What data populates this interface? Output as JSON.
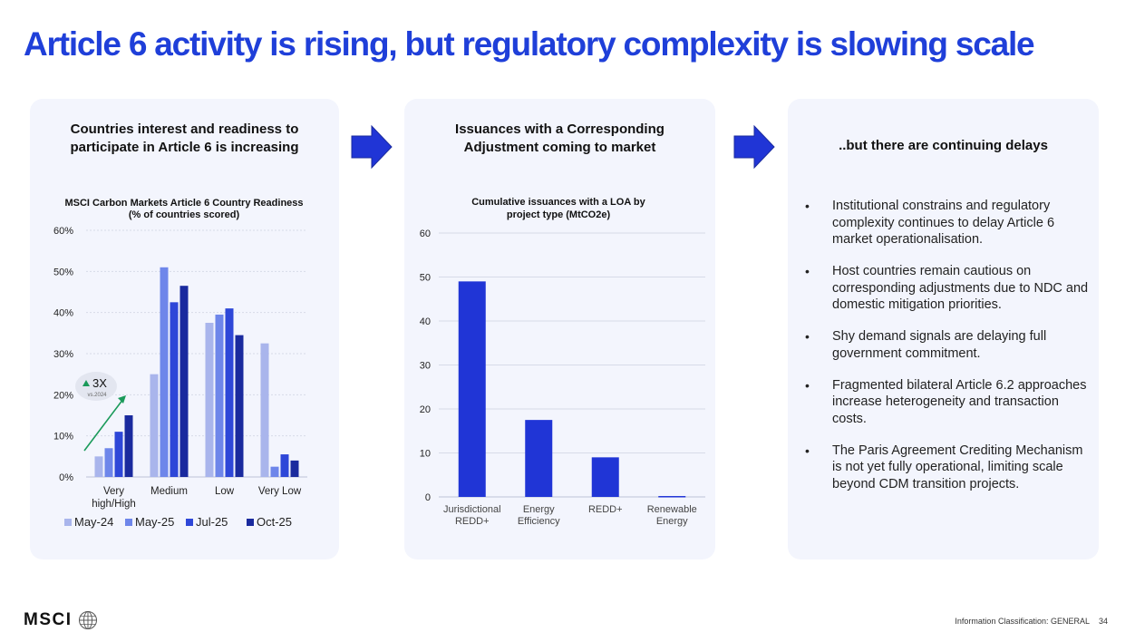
{
  "slide": {
    "title": "Article 6 activity is rising, but regulatory complexity is slowing scale"
  },
  "panel1": {
    "heading_line1": "Countries interest and readiness to",
    "heading_line2": "participate in Article 6 is increasing"
  },
  "panel2": {
    "heading_line1": "Issuances with a Corresponding",
    "heading_line2": "Adjustment coming to market"
  },
  "panel3": {
    "heading": "..but there are continuing delays",
    "bullets": [
      "Institutional constrains and regulatory complexity continues to delay Article 6 market operationalisation.",
      "Host countries remain cautious on corresponding adjustments due to NDC and domestic mitigation priorities.",
      "Shy demand signals are delaying full government commitment.",
      "Fragmented bilateral Article 6.2 approaches increase heterogeneity and transaction costs.",
      "The Paris Agreement Crediting Mechanism is not yet fully operational, limiting scale beyond CDM transition projects."
    ]
  },
  "chart_data": [
    {
      "type": "bar",
      "title_line1": "MSCI Carbon Markets Article 6 Country Readiness",
      "title_line2": "(% of countries scored)",
      "categories": [
        [
          "Very",
          "high/High"
        ],
        [
          "Medium"
        ],
        [
          "Low"
        ],
        [
          "Very Low"
        ]
      ],
      "series": [
        {
          "name": "May-24",
          "color": "#a9b5ec",
          "values": [
            5,
            25,
            37.5,
            32.5
          ]
        },
        {
          "name": "May-25",
          "color": "#6e86ea",
          "values": [
            7,
            51,
            39.5,
            2.5
          ]
        },
        {
          "name": "Jul-25",
          "color": "#2e47d8",
          "values": [
            11,
            42.5,
            41,
            5.5
          ]
        },
        {
          "name": "Oct-25",
          "color": "#1a2a9e",
          "values": [
            15,
            46.5,
            34.5,
            4
          ]
        }
      ],
      "yticks": [
        "0%",
        "10%",
        "20%",
        "30%",
        "40%",
        "50%",
        "60%"
      ],
      "ylim": [
        0,
        60
      ],
      "grid": true,
      "legend": "bottom",
      "annotation": {
        "label": "3X",
        "sublabel": "vs.2024",
        "icon": "triangle-up-icon",
        "color": "#1a9a5a"
      }
    },
    {
      "type": "bar",
      "title_line1": "Cumulative issuances with a LOA by",
      "title_line2": "project type (MtCO2e)",
      "categories": [
        [
          "Jurisdictional",
          "REDD+"
        ],
        [
          "Energy",
          "Efficiency"
        ],
        [
          "REDD+"
        ],
        [
          "Renewable",
          "Energy"
        ]
      ],
      "values": [
        49,
        17.5,
        9,
        0.2
      ],
      "color": "#2035d6",
      "yticks": [
        "0",
        "10",
        "20",
        "30",
        "40",
        "50",
        "60"
      ],
      "ylim": [
        0,
        60
      ],
      "grid": true
    }
  ],
  "footer": {
    "logo": "MSCI",
    "logo_icon": "globe-icon",
    "classification": "Information Classification: GENERAL",
    "page_number": "34"
  }
}
